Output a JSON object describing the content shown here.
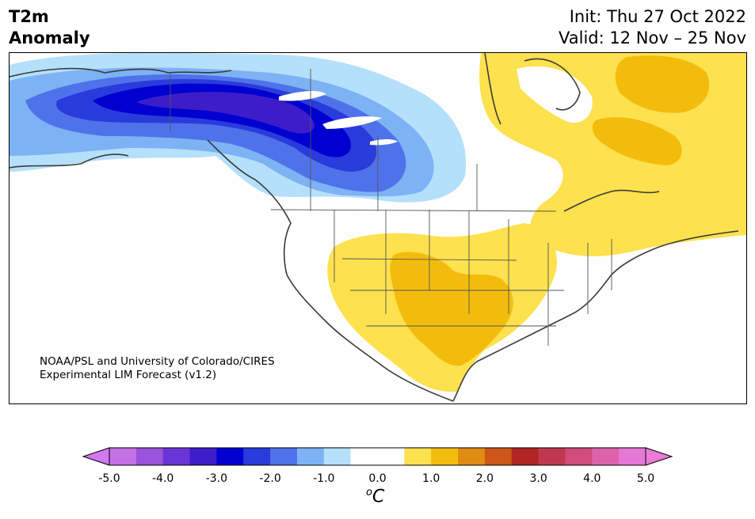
{
  "title": {
    "line1": "T2m",
    "line2": "Anomaly"
  },
  "info": {
    "init": "Init: Thu 27 Oct 2022",
    "valid": "Valid: 12 Nov – 25 Nov"
  },
  "credit": {
    "line1": "NOAA/PSL and University of Colorado/CIRES",
    "line2": "Experimental LIM Forecast (v1.2)"
  },
  "colorbar": {
    "unit_base": "C",
    "unit_sup": "o",
    "tick_labels": [
      "-5.0",
      "-4.0",
      "-3.0",
      "-2.0",
      "-1.0",
      "0.0",
      "1.0",
      "2.0",
      "3.0",
      "4.0",
      "5.0"
    ],
    "colors": [
      "#c472e6",
      "#9a54dc",
      "#6a35d7",
      "#3d1dc9",
      "#0000d0",
      "#2a3bdc",
      "#4f72ea",
      "#7db2f4",
      "#b5e0fb",
      "#ffffff",
      "#ffffff",
      "#fde14e",
      "#f3bc0d",
      "#e08c12",
      "#cc5518",
      "#b02424",
      "#c03850",
      "#d04c7a",
      "#dc63ab",
      "#e678d8"
    ],
    "extend_low_color": "#d279ee",
    "extend_high_color": "#ea7cd8"
  }
}
